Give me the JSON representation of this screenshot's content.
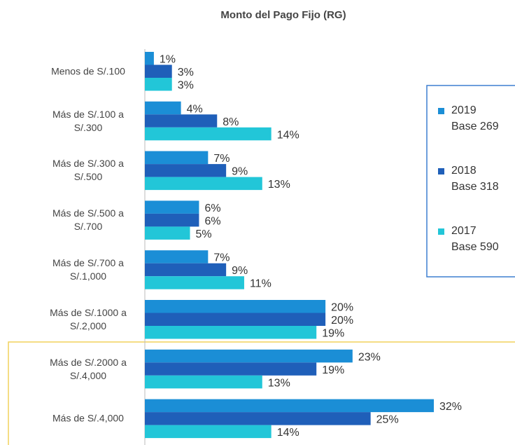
{
  "chart_data": {
    "type": "bar",
    "orientation": "horizontal",
    "title": "Monto del Pago Fijo (RG)",
    "categories": [
      "Menos de S/.100",
      "Más de S/.100 a S/.300",
      "Más de S/.300 a S/.500",
      "Más de S/.500 a S/.700",
      "Más de S/.700 a S/.1,000",
      "Más de S/.1000 a S/.2,000",
      "Más de S/.2000 a S/.4,000",
      "Más de S/.4,000"
    ],
    "series": [
      {
        "name": "2019",
        "base": "Base 269",
        "color": "#1b8ed6",
        "values": [
          1,
          4,
          7,
          6,
          7,
          20,
          23,
          32
        ],
        "value_labels": [
          "1%",
          "4%",
          "7%",
          "6%",
          "7%",
          "20%",
          "23%",
          "32%"
        ]
      },
      {
        "name": "2018",
        "base": "Base 318",
        "color": "#1f5fb9",
        "values": [
          3,
          8,
          9,
          6,
          9,
          20,
          19,
          25
        ],
        "value_labels": [
          "3%",
          "8%",
          "9%",
          "6%",
          "9%",
          "20%",
          "19%",
          "25%"
        ]
      },
      {
        "name": "2017",
        "base": "Base 590",
        "color": "#22c6d8",
        "values": [
          3,
          14,
          13,
          5,
          11,
          19,
          13,
          14
        ],
        "value_labels": [
          "3%",
          "14%",
          "13%",
          "5%",
          "11%",
          "19%",
          "13%",
          "14%"
        ]
      }
    ]
  }
}
